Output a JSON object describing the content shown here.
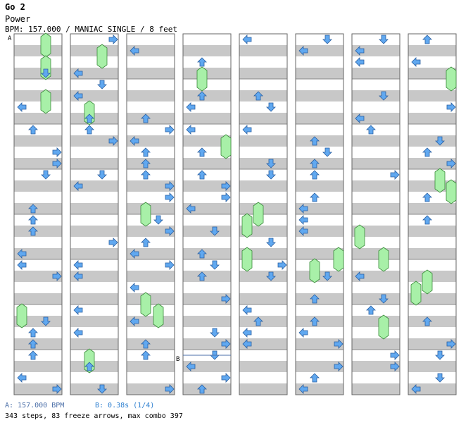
{
  "header": {
    "title": "Go 2",
    "song": "Power",
    "info": "BPM: 157.000 / MANIAC SINGLE / 8 feet"
  },
  "markers": {
    "a": "A",
    "b": "B"
  },
  "footer": {
    "legend_a": "A: 157.000 BPM",
    "legend_b": "B: 0.38s (1/4)",
    "stats": "343 steps, 83 freeze arrows, max combo 397"
  },
  "colors": {
    "red_arrow": "#f08888",
    "blue_arrow": "#60a8f0",
    "freeze": "#a8f0a8",
    "band": "#c8c8c8"
  }
}
